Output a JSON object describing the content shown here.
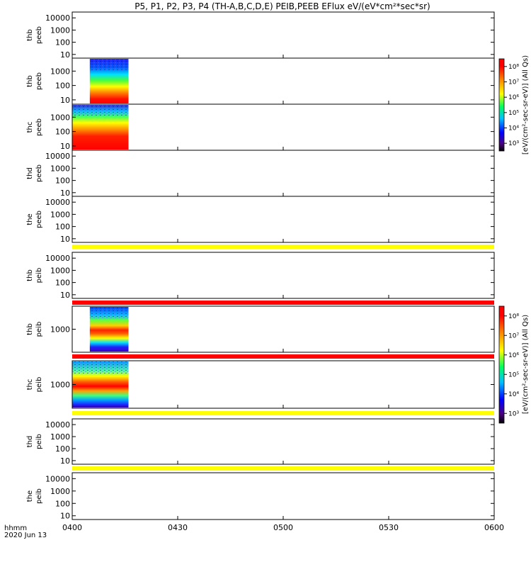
{
  "chart_data": {
    "type": "heatmap",
    "title": "P5, P1, P2, P3, P4 (TH-A,B,C,D,E) PEIB,PEEB EFlux eV/(eV*cm²*sec*sr)",
    "x_axis": {
      "title_line1": "hhmm",
      "title_line2": "2020 Jun 13",
      "range": [
        "0400",
        "0600"
      ],
      "ticks": [
        "0400",
        "0430",
        "0500",
        "0530",
        "0600"
      ]
    },
    "colorbar": {
      "ticks": [
        "10³",
        "10⁴",
        "10⁵",
        "10⁶",
        "10⁷",
        "10⁸"
      ],
      "electron_label": "[eV/(cm²-sec-sr-eV)] (All Qs)",
      "ion_label": "[eV/(cm²-sec-sr-eV)] (All Qs)"
    },
    "panels": [
      {
        "probe": "thb",
        "instrument": "peeb",
        "yticks": [
          "10",
          "100",
          "1000",
          "10000"
        ],
        "ylim": [
          5,
          30000
        ],
        "log": true,
        "data": "none"
      },
      {
        "probe": "thb",
        "instrument": "peeb",
        "yticks": [
          "10",
          "100",
          "1000"
        ],
        "ylim": [
          5,
          8000
        ],
        "log": true,
        "data": "spectrogram",
        "coverage": [
          "0405",
          "0416"
        ]
      },
      {
        "probe": "thc",
        "instrument": "peeb",
        "yticks": [
          "10",
          "100",
          "1000"
        ],
        "ylim": [
          5,
          8000
        ],
        "log": true,
        "data": "spectrogram",
        "coverage": [
          "0400",
          "0416"
        ]
      },
      {
        "probe": "thd",
        "instrument": "peeb",
        "yticks": [
          "10",
          "100",
          "1000",
          "10000"
        ],
        "ylim": [
          5,
          30000
        ],
        "log": true,
        "data": "none"
      },
      {
        "probe": "the",
        "instrument": "peeb",
        "yticks": [
          "10",
          "100",
          "1000",
          "10000"
        ],
        "ylim": [
          5,
          30000
        ],
        "log": true,
        "data": "none"
      },
      {
        "probe": "thb",
        "instrument": "peib",
        "yticks": [
          "10",
          "100",
          "1000",
          "10000"
        ],
        "ylim": [
          5,
          30000
        ],
        "log": true,
        "data": "none"
      },
      {
        "probe": "thb",
        "instrument": "peib",
        "yticks": [
          "1000"
        ],
        "ylim": [
          200,
          5000
        ],
        "log": true,
        "data": "spectrogram",
        "coverage": [
          "0405",
          "0416"
        ]
      },
      {
        "probe": "thc",
        "instrument": "peib",
        "yticks": [
          "1000"
        ],
        "ylim": [
          200,
          5000
        ],
        "log": true,
        "data": "spectrogram",
        "coverage": [
          "0400",
          "0416"
        ]
      },
      {
        "probe": "thd",
        "instrument": "peib",
        "yticks": [
          "10",
          "100",
          "1000",
          "10000"
        ],
        "ylim": [
          5,
          30000
        ],
        "log": true,
        "data": "none"
      },
      {
        "probe": "the",
        "instrument": "peib",
        "yticks": [
          "10",
          "100",
          "1000",
          "10000"
        ],
        "ylim": [
          5,
          30000
        ],
        "log": true,
        "data": "none"
      }
    ]
  }
}
